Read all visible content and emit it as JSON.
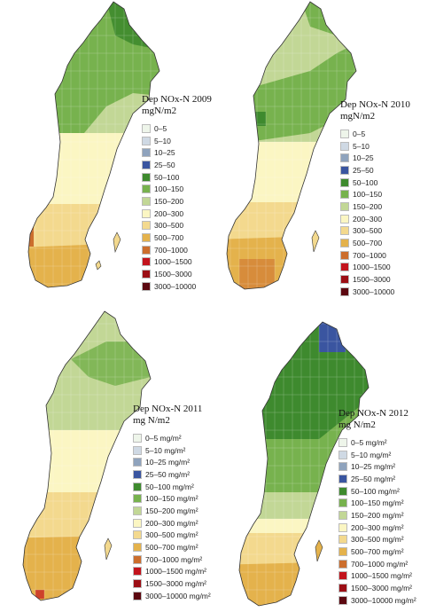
{
  "colors": [
    "#eef5ea",
    "#cfd9e4",
    "#8fa3bd",
    "#3a55a0",
    "#3e8a2e",
    "#77b24e",
    "#c2d796",
    "#fbf6c3",
    "#f3d98e",
    "#e4b24c",
    "#cc6e2d",
    "#c3141d",
    "#9c0e15",
    "#5c0810"
  ],
  "panels": [
    {
      "title_line1": "Dep NOx-N 2009",
      "title_line2": "mgN/m2",
      "labels": [
        "0–5",
        "5–10",
        "10–25",
        "25–50",
        "50–100",
        "100–150",
        "150–200",
        "200–300",
        "300–500",
        "500–700",
        "700–1000",
        "1000–1500",
        "1500–3000",
        "3000–10000"
      ]
    },
    {
      "title_line1": "Dep NOx-N 2010",
      "title_line2": "mgN/m2",
      "labels": [
        "0–5",
        "5–10",
        "10–25",
        "25–50",
        "50–100",
        "100–150",
        "150–200",
        "200–300",
        "300–500",
        "500–700",
        "700–1000",
        "1000–1500",
        "1500–3000",
        "3000–10000"
      ]
    },
    {
      "title_line1": "Dep NOx-N 2011",
      "title_line2": "mg N/m2",
      "labels": [
        "0–5 mg/m²",
        "5–10 mg/m²",
        "10–25 mg/m²",
        "25–50 mg/m²",
        "50–100 mg/m²",
        "100–150 mg/m²",
        "150–200 mg/m²",
        "200–300 mg/m²",
        "300–500 mg/m²",
        "500–700 mg/m²",
        "700–1000 mg/m²",
        "1000–1500 mg/m²",
        "1500–3000 mg/m²",
        "3000–10000 mg/m²"
      ]
    },
    {
      "title_line1": "Dep NOx-N 2012",
      "title_line2": "mg N/m2",
      "labels": [
        "0–5 mg/m²",
        "5–10 mg/m²",
        "10–25 mg/m²",
        "25–50 mg/m²",
        "50–100 mg/m²",
        "100–150 mg/m²",
        "150–200 mg/m²",
        "200–300 mg/m²",
        "300–500 mg/m²",
        "500–700 mg/m²",
        "700–1000 mg/m²",
        "1000–1500 mg/m²",
        "1500–3000 mg/m²",
        "3000–10000 mg/m²"
      ]
    }
  ]
}
